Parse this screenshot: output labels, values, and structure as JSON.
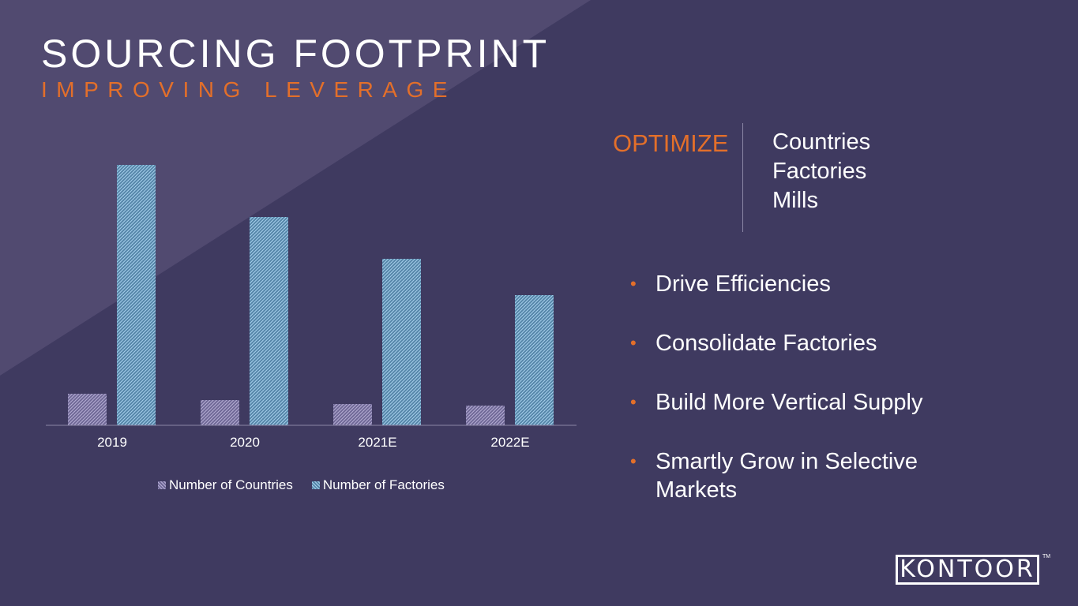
{
  "header": {
    "title": "SOURCING FOOTPRINT",
    "subtitle": "IMPROVING LEVERAGE"
  },
  "colors": {
    "background": "#3f3a60",
    "background_band": "#514a70",
    "accent": "#e36f2a",
    "text": "#ffffff",
    "countries_bar": "#8c84b4",
    "factories_bar": "#7db3d9"
  },
  "chart_data": {
    "type": "bar",
    "categories": [
      "2019",
      "2020",
      "2021E",
      "2022E"
    ],
    "series": [
      {
        "name": "Number of Countries",
        "values": [
          40,
          32,
          27,
          25
        ]
      },
      {
        "name": "Number of Factories",
        "values": [
          330,
          264,
          211,
          165
        ]
      }
    ],
    "ylim": [
      0,
      360
    ],
    "grid": false,
    "y_axis_labels": false,
    "legend_position": "bottom"
  },
  "optimize": {
    "label": "OPTIMIZE",
    "items": [
      "Countries",
      "Factories",
      "Mills"
    ]
  },
  "bullets": [
    "Drive Efficiencies",
    "Consolidate Factories",
    "Build More Vertical Supply",
    "Smartly Grow in Selective Markets"
  ],
  "logo": {
    "text": "KONTOOR",
    "trademark": "TM"
  }
}
